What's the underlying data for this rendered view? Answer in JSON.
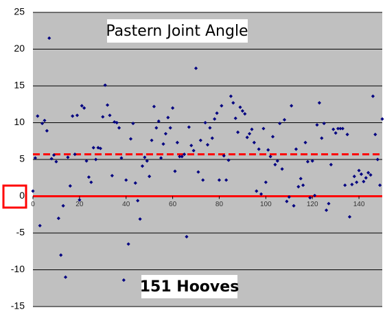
{
  "chart_data": {
    "type": "scatter",
    "annotations": [
      "Pastern Joint Angle",
      "151 Hooves"
    ],
    "x": [
      0,
      1,
      2,
      3,
      4,
      5,
      6,
      7,
      8,
      9,
      10,
      11,
      12,
      13,
      14,
      15,
      16,
      17,
      18,
      19,
      20,
      21,
      22,
      23,
      24,
      25,
      26,
      27,
      28,
      29,
      30,
      31,
      32,
      33,
      34,
      35,
      36,
      37,
      38,
      39,
      40,
      41,
      42,
      43,
      44,
      45,
      46,
      47,
      48,
      49,
      50,
      51,
      52,
      53,
      54,
      55,
      56,
      57,
      58,
      59,
      60,
      61,
      62,
      63,
      64,
      65,
      66,
      67,
      68,
      69,
      70,
      71,
      72,
      73,
      74,
      75,
      76,
      77,
      78,
      79,
      80,
      81,
      82,
      83,
      84,
      85,
      86,
      87,
      88,
      89,
      90,
      91,
      92,
      93,
      94,
      95,
      96,
      97,
      98,
      99,
      100,
      101,
      102,
      103,
      104,
      105,
      106,
      107,
      108,
      109,
      110,
      111,
      112,
      113,
      114,
      115,
      116,
      117,
      118,
      119,
      120,
      121,
      122,
      123,
      124,
      125,
      126,
      127,
      128,
      129,
      130,
      131,
      132,
      133,
      134,
      135,
      136,
      137,
      138,
      139,
      140,
      141,
      142,
      143,
      144,
      145,
      146,
      147,
      148,
      149,
      150
    ],
    "values": [
      0.7,
      5.2,
      10.9,
      -4.0,
      9.9,
      10.3,
      8.9,
      21.5,
      5.1,
      5.6,
      4.7,
      -3.0,
      -8.0,
      -1.3,
      -11.0,
      5.3,
      1.4,
      10.9,
      5.7,
      11.0,
      -0.5,
      12.3,
      12.0,
      4.8,
      2.6,
      1.9,
      6.6,
      5.0,
      6.6,
      6.5,
      10.8,
      15.1,
      12.4,
      11.0,
      2.8,
      10.1,
      10.0,
      9.3,
      5.2,
      -11.4,
      2.2,
      -6.5,
      7.8,
      9.9,
      1.8,
      -0.6,
      -3.1,
      4.1,
      5.3,
      4.8,
      2.7,
      7.6,
      12.2,
      9.3,
      10.2,
      5.2,
      7.1,
      8.5,
      10.7,
      9.3,
      12.0,
      3.4,
      7.3,
      5.4,
      5.4,
      5.7,
      -5.5,
      9.4,
      6.9,
      6.2,
      17.4,
      3.3,
      7.6,
      2.2,
      10.0,
      7.0,
      9.3,
      7.9,
      10.5,
      11.3,
      2.2,
      12.3,
      5.5,
      2.2,
      4.9,
      13.6,
      12.7,
      10.6,
      8.7,
      12.1,
      11.6,
      11.2,
      8.0,
      8.5,
      9.1,
      7.3,
      0.7,
      6.4,
      0.3,
      9.2,
      1.9,
      6.3,
      5.4,
      8.1,
      4.3,
      4.8,
      9.9,
      3.7,
      10.4,
      -0.7,
      -0.1,
      12.3,
      -1.3,
      6.4,
      1.3,
      2.4,
      1.5,
      7.3,
      4.7,
      -0.2,
      4.8,
      0.1,
      9.7,
      12.7,
      7.9,
      9.9,
      -1.9,
      -1.0,
      4.3,
      9.1,
      8.6,
      9.2,
      9.2,
      9.2,
      1.5,
      8.4,
      -2.8,
      1.6,
      2.7,
      1.9,
      3.5,
      3.0,
      2.0,
      2.5,
      3.2,
      2.9,
      13.6,
      8.4,
      5.0,
      1.5,
      10.5
    ],
    "color": "#000080",
    "xlim": [
      0,
      150
    ],
    "xticks": [
      0,
      20,
      40,
      60,
      80,
      100,
      120,
      140
    ],
    "ylim": [
      -15,
      25
    ],
    "yticks": [
      -15,
      -10,
      -5,
      0,
      5,
      10,
      15,
      20,
      25
    ],
    "grid": true,
    "reference_lines": [
      {
        "value": 5.7,
        "style": "dashed",
        "color": "#ff0000"
      },
      {
        "value": 0,
        "style": "solid",
        "color": "#ff0000"
      }
    ]
  }
}
